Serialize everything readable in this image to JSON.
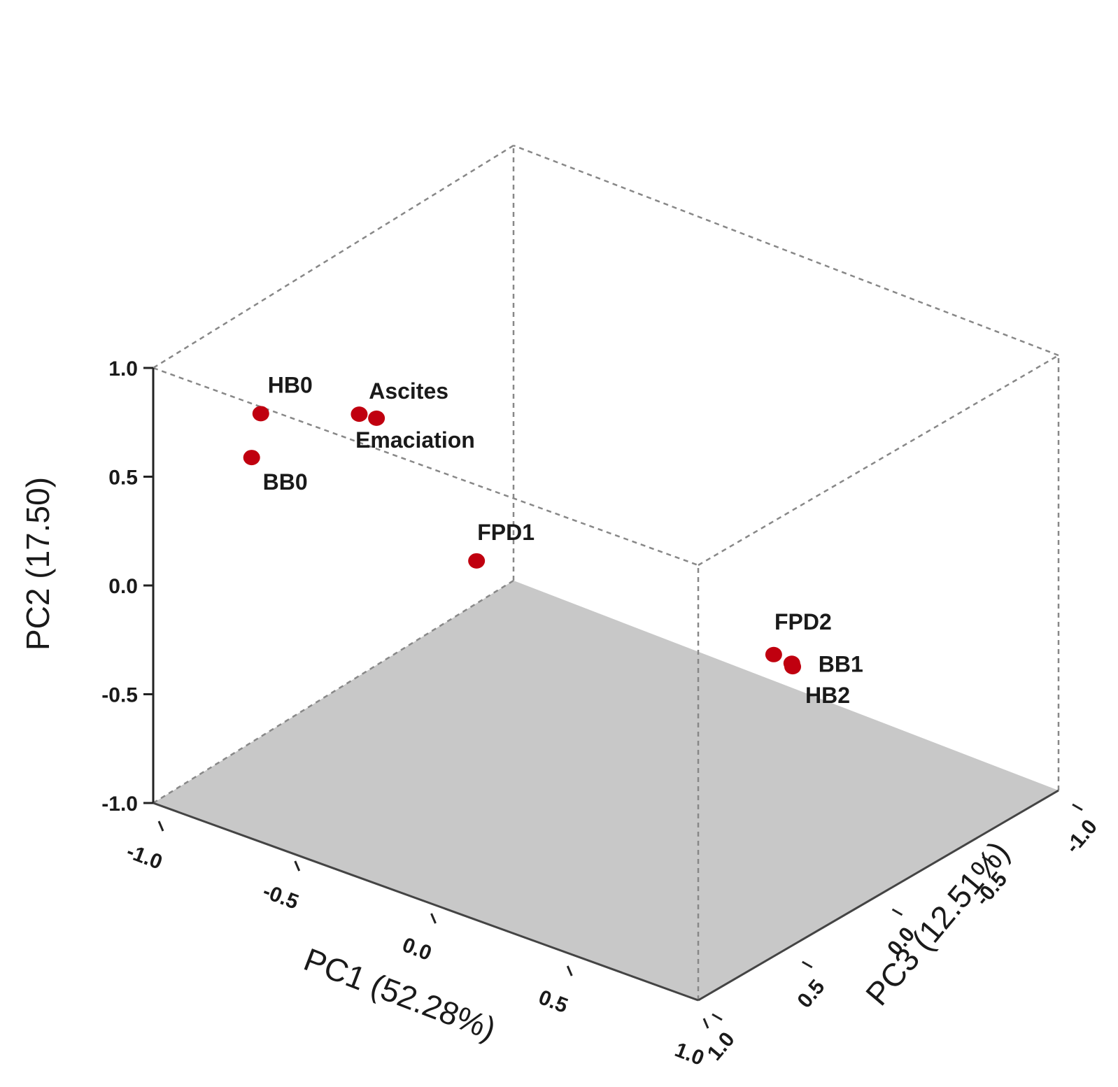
{
  "chart_data": {
    "type": "scatter",
    "dimensions": 3,
    "axes": {
      "x": {
        "label": "PC1 (52.28%)",
        "range": [
          -1.0,
          1.0
        ],
        "ticks": [
          -1.0,
          -0.5,
          0.0,
          0.5,
          1.0
        ],
        "tick_labels": [
          "-1.0",
          "-0.5",
          "0.0",
          "0.5",
          "1.0"
        ]
      },
      "y": {
        "label": "PC2 (17.50)",
        "range": [
          -1.0,
          1.0
        ],
        "ticks": [
          -1.0,
          -0.5,
          0.0,
          0.5,
          1.0
        ],
        "tick_labels": [
          "-1.0",
          "-0.5",
          "0.0",
          "0.5",
          "1.0"
        ]
      },
      "z": {
        "label": "PC3 (12.51%)",
        "range": [
          -1.0,
          1.0
        ],
        "ticks": [
          -1.0,
          -0.5,
          0.0,
          0.5,
          1.0
        ],
        "tick_labels": [
          "-1.0",
          "-0.5",
          "0.0",
          "0.5",
          "1.0"
        ]
      }
    },
    "floor_color": "#c8c8c8",
    "point_color": "#c0000f",
    "edge_color": "#888888",
    "grid": false,
    "points": [
      {
        "label": "Ascites",
        "x": -0.26,
        "y": 1.01,
        "z": -0.88
      },
      {
        "label": "Emaciation",
        "x": -0.33,
        "y": 0.99,
        "z": -0.87
      },
      {
        "label": "HB0",
        "x": -0.83,
        "y": 0.65,
        "z": -0.66
      },
      {
        "label": "BB0",
        "x": -0.89,
        "y": 0.4,
        "z": -0.62
      },
      {
        "label": "FPD1",
        "x": -0.62,
        "y": -0.35,
        "z": 0.22
      },
      {
        "label": "FPD2",
        "x": 0.92,
        "y": 0.29,
        "z": -0.46
      },
      {
        "label": "BB1",
        "x": 0.96,
        "y": 0.25,
        "z": -0.42
      },
      {
        "label": "HB2",
        "x": 0.95,
        "y": 0.22,
        "z": -0.4
      }
    ]
  }
}
